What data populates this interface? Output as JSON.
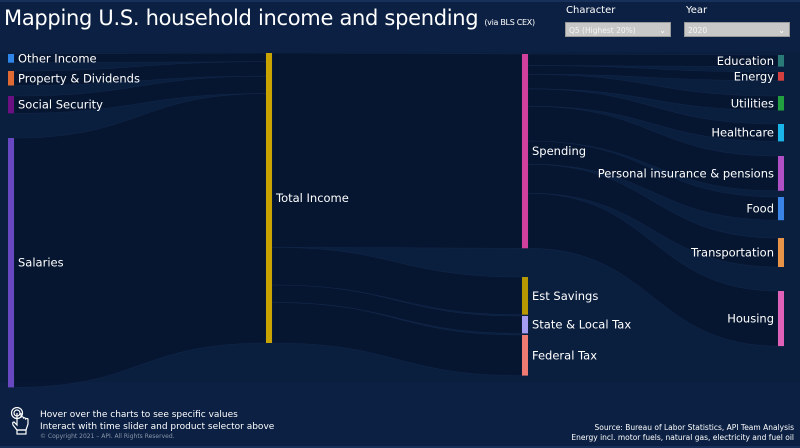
{
  "header": {
    "title": "Mapping U.S. household income and spending",
    "subtitle": "(via BLS CEX)"
  },
  "controls": {
    "character": {
      "label": "Character",
      "value": "Q5 (Highest 20%)"
    },
    "year": {
      "label": "Year",
      "value": "2020"
    }
  },
  "chart_data": {
    "type": "sankey",
    "value_units": "approx. share of total income (%)",
    "nodes": [
      {
        "id": "other",
        "label": "Other Income",
        "value": 3,
        "color": "#2f86e8"
      },
      {
        "id": "property",
        "label": "Property & Dividends",
        "value": 5,
        "color": "#e06a34"
      },
      {
        "id": "social",
        "label": "Social Security",
        "value": 6,
        "color": "#6a1080"
      },
      {
        "id": "salaries",
        "label": "Salaries",
        "value": 86,
        "color": "#6848c0"
      },
      {
        "id": "total",
        "label": "Total Income",
        "value": 100,
        "color": "#c9a400"
      },
      {
        "id": "spending",
        "label": "Spending",
        "value": 67,
        "color": "#d2409e"
      },
      {
        "id": "savings",
        "label": "Est Savings",
        "value": 13,
        "color": "#b89800"
      },
      {
        "id": "statetax",
        "label": "State & Local Tax",
        "value": 6,
        "color": "#a49cf0"
      },
      {
        "id": "fedtax",
        "label": "Federal Tax",
        "value": 14,
        "color": "#ee7a72"
      },
      {
        "id": "education",
        "label": "Education",
        "value": 4,
        "color": "#2a7a78"
      },
      {
        "id": "energy",
        "label": "Energy",
        "value": 3,
        "color": "#d44040"
      },
      {
        "id": "utilities",
        "label": "Utilities",
        "value": 5,
        "color": "#22a040"
      },
      {
        "id": "healthcare",
        "label": "Healthcare",
        "value": 6,
        "color": "#1ab4e8"
      },
      {
        "id": "personal",
        "label": "Personal insurance & pensions",
        "value": 12,
        "color": "#b050c4"
      },
      {
        "id": "food",
        "label": "Food",
        "value": 8,
        "color": "#3a84e8"
      },
      {
        "id": "transportation",
        "label": "Transportation",
        "value": 10,
        "color": "#e89448"
      },
      {
        "id": "housing",
        "label": "Housing",
        "value": 19,
        "color": "#e062b8"
      }
    ],
    "links": [
      [
        "other",
        "total",
        3
      ],
      [
        "property",
        "total",
        5
      ],
      [
        "social",
        "total",
        6
      ],
      [
        "salaries",
        "total",
        86
      ],
      [
        "total",
        "spending",
        67
      ],
      [
        "total",
        "savings",
        13
      ],
      [
        "total",
        "statetax",
        6
      ],
      [
        "total",
        "fedtax",
        14
      ],
      [
        "spending",
        "education",
        4
      ],
      [
        "spending",
        "energy",
        3
      ],
      [
        "spending",
        "utilities",
        5
      ],
      [
        "spending",
        "healthcare",
        6
      ],
      [
        "spending",
        "personal",
        12
      ],
      [
        "spending",
        "food",
        8
      ],
      [
        "spending",
        "transportation",
        10
      ],
      [
        "spending",
        "housing",
        19
      ]
    ]
  },
  "footer": {
    "hint_line1": "Hover over the charts to see specific values",
    "hint_line2": "Interact with time slider and product selector above",
    "copyright": "© Copyright 2021 – API. All Rights Reserved.",
    "source": "Source: Bureau of Labor Statistics, API Team Analysis",
    "note": "Energy incl. motor fuels, natural gas, electricity and fuel oil"
  }
}
